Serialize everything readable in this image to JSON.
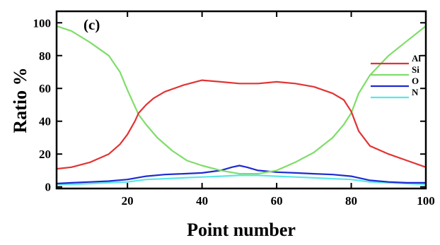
{
  "chart_data": {
    "type": "line",
    "panel_label": "(c)",
    "xlabel": "Point number",
    "ylabel": "Ratio %",
    "xlim": [
      1,
      100
    ],
    "ylim": [
      -1,
      107
    ],
    "x_ticks": [
      20,
      40,
      60,
      80,
      100
    ],
    "x_tick_labels": [
      "20",
      "40",
      "60",
      "80",
      "100"
    ],
    "y_ticks": [
      0,
      20,
      40,
      60,
      80,
      100
    ],
    "y_tick_labels": [
      "0",
      "20",
      "40",
      "60",
      "80",
      "100"
    ],
    "grid": false,
    "legend_position": "right",
    "series": [
      {
        "name": "Al",
        "color": "#e23333",
        "x": [
          1,
          5,
          10,
          15,
          18,
          20,
          22,
          23,
          25,
          27,
          30,
          35,
          40,
          45,
          50,
          55,
          60,
          65,
          70,
          75,
          78,
          80,
          82,
          85,
          90,
          95,
          100
        ],
        "values": [
          11,
          12,
          15,
          20,
          26,
          32,
          40,
          45,
          50,
          54,
          58,
          62,
          65,
          64,
          63,
          63,
          64,
          63,
          61,
          57,
          53,
          46,
          34,
          25,
          20,
          16,
          12
        ]
      },
      {
        "name": "Si",
        "color": "#7fdd6a",
        "x": [
          1,
          5,
          10,
          15,
          18,
          20,
          22,
          23,
          25,
          28,
          32,
          36,
          40,
          45,
          50,
          55,
          60,
          65,
          70,
          75,
          78,
          80,
          82,
          85,
          90,
          95,
          100
        ],
        "values": [
          98,
          95,
          88,
          80,
          70,
          59,
          49,
          44,
          38,
          30,
          22,
          16,
          13,
          10,
          8,
          8,
          10,
          15,
          21,
          30,
          38,
          45,
          57,
          68,
          80,
          89,
          98
        ]
      },
      {
        "name": "O",
        "color": "#1f2bd1",
        "x": [
          1,
          5,
          10,
          15,
          20,
          25,
          30,
          35,
          40,
          45,
          48,
          50,
          52,
          55,
          60,
          65,
          70,
          75,
          80,
          85,
          90,
          95,
          100
        ],
        "values": [
          2,
          2.5,
          3,
          3.5,
          4.5,
          6.5,
          7.5,
          8,
          8.5,
          10,
          12,
          13,
          12,
          10,
          9,
          8.5,
          8,
          7.5,
          6.5,
          4,
          3,
          2.5,
          2.5
        ]
      },
      {
        "name": "N",
        "color": "#58e7e7",
        "x": [
          1,
          5,
          10,
          15,
          20,
          25,
          30,
          35,
          40,
          45,
          50,
          55,
          60,
          65,
          70,
          75,
          80,
          85,
          90,
          95,
          100
        ],
        "values": [
          1.5,
          1.5,
          2,
          2.5,
          3,
          4.5,
          5,
          5.5,
          6,
          6.5,
          7,
          7,
          6.5,
          6,
          5.5,
          5,
          4.5,
          3,
          2.5,
          2,
          1.5
        ]
      }
    ]
  }
}
